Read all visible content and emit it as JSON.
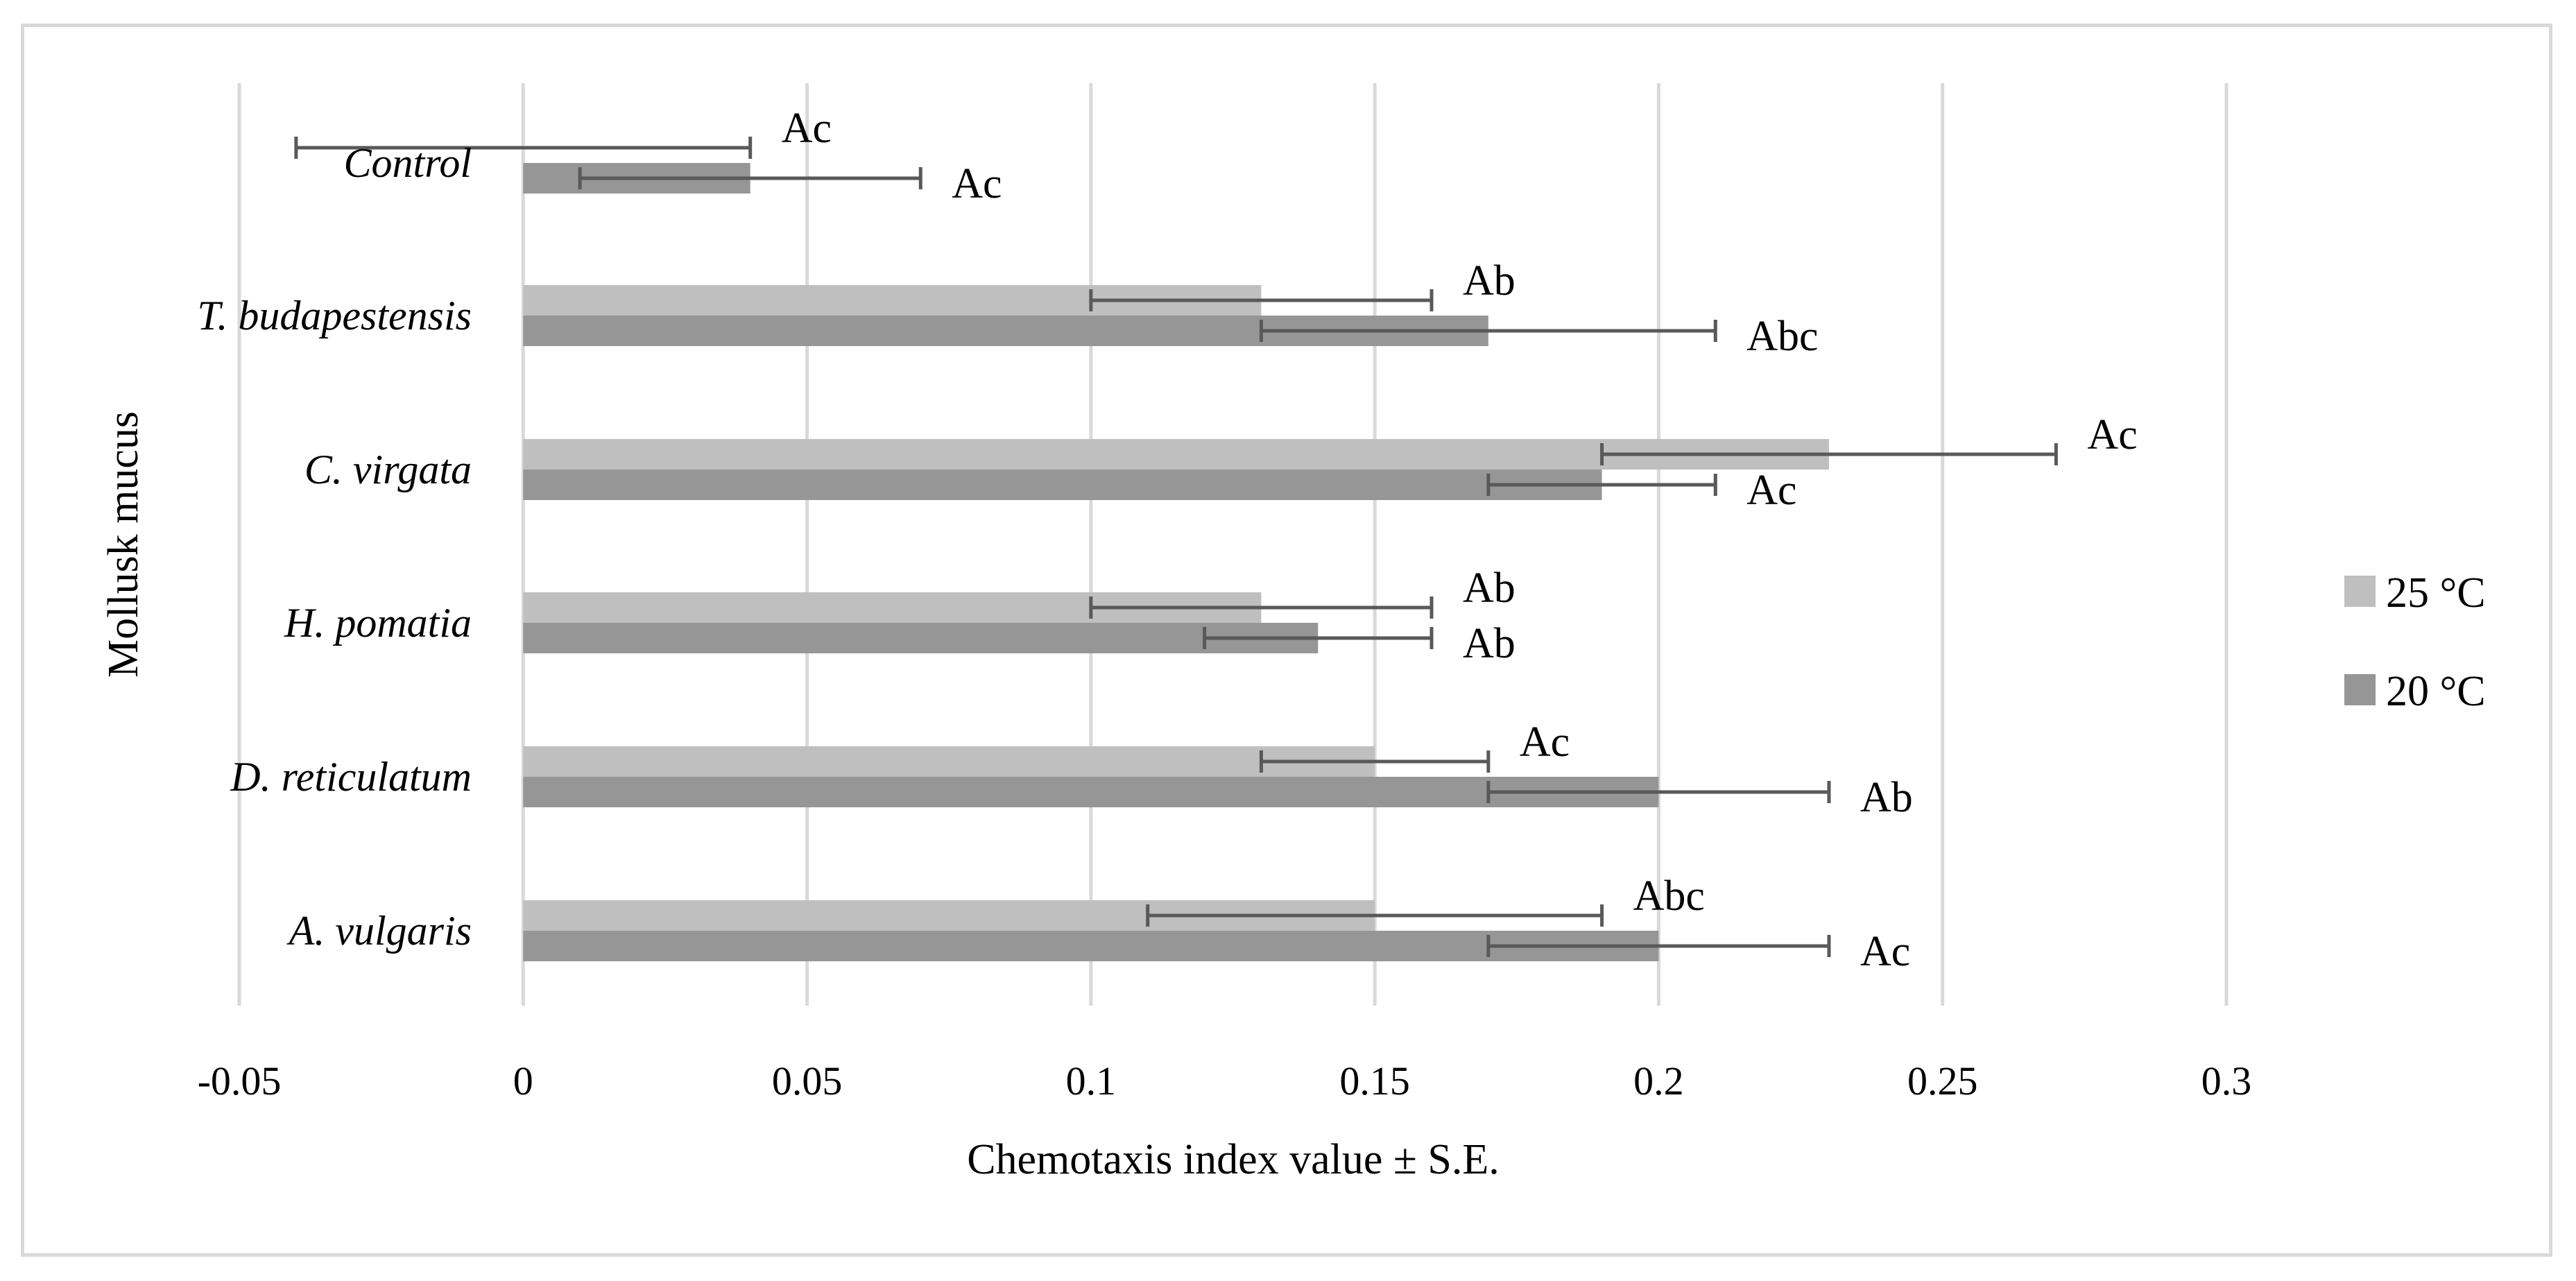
{
  "chart_data": {
    "type": "bar",
    "orientation": "horizontal",
    "title": "",
    "xlabel": "Chemotaxis index value ± S.E.",
    "ylabel": "Mollusk mucus",
    "xlim": [
      -0.05,
      0.3
    ],
    "xticks": [
      "-0.05",
      "0",
      "0.05",
      "0.1",
      "0.15",
      "0.2",
      "0.25",
      "0.3"
    ],
    "grid": true,
    "legend_position": "right",
    "categories": [
      "Control",
      "T. budapestensis",
      "C. virgata",
      "H. pomatia",
      "D. reticulatum",
      "A. vulgaris"
    ],
    "series": [
      {
        "name": "25 °C",
        "color": "#bfbfbf",
        "values": [
          0.0,
          0.13,
          0.23,
          0.13,
          0.15,
          0.15
        ],
        "errors": [
          0.04,
          0.03,
          0.04,
          0.03,
          0.02,
          0.04
        ],
        "labels": [
          "Ac",
          "Ab",
          "Ac",
          "Ab",
          "Ac",
          "Abc"
        ]
      },
      {
        "name": "20 °C",
        "color": "#969696",
        "values": [
          0.04,
          0.17,
          0.19,
          0.14,
          0.2,
          0.2
        ],
        "errors": [
          0.03,
          0.04,
          0.02,
          0.02,
          0.03,
          0.03
        ],
        "labels": [
          "Ac",
          "Abc",
          "Ac",
          "Ab",
          "Ab",
          "Ac"
        ]
      }
    ]
  }
}
